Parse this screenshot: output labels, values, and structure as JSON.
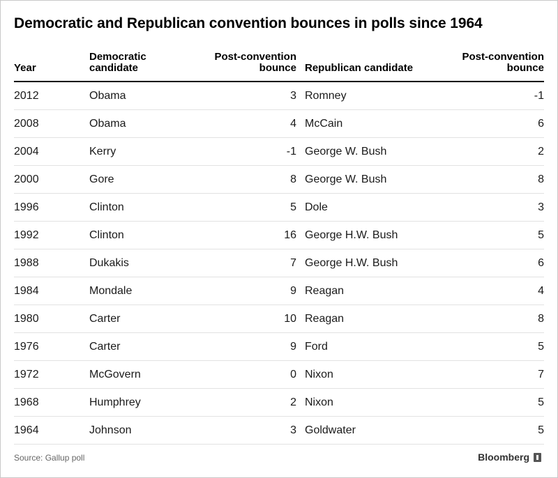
{
  "title": "Democratic and Republican convention bounces in polls since 1964",
  "source": "Source: Gallup poll",
  "brand": "Bloomberg",
  "chart_data": {
    "type": "table",
    "title": "Democratic and Republican convention bounces in polls since 1964",
    "columns": [
      "Year",
      "Democratic candidate",
      "Post-convention bounce",
      "Republican candidate",
      "Post-convention bounce"
    ],
    "rows": [
      [
        "2012",
        "Obama",
        "3",
        "Romney",
        "-1"
      ],
      [
        "2008",
        "Obama",
        "4",
        "McCain",
        "6"
      ],
      [
        "2004",
        "Kerry",
        "-1",
        "George W. Bush",
        "2"
      ],
      [
        "2000",
        "Gore",
        "8",
        "George W. Bush",
        "8"
      ],
      [
        "1996",
        "Clinton",
        "5",
        "Dole",
        "3"
      ],
      [
        "1992",
        "Clinton",
        "16",
        "George H.W. Bush",
        "5"
      ],
      [
        "1988",
        "Dukakis",
        "7",
        "George H.W. Bush",
        "6"
      ],
      [
        "1984",
        "Mondale",
        "9",
        "Reagan",
        "4"
      ],
      [
        "1980",
        "Carter",
        "10",
        "Reagan",
        "8"
      ],
      [
        "1976",
        "Carter",
        "9",
        "Ford",
        "5"
      ],
      [
        "1972",
        "McGovern",
        "0",
        "Nixon",
        "7"
      ],
      [
        "1968",
        "Humphrey",
        "2",
        "Nixon",
        "5"
      ],
      [
        "1964",
        "Johnson",
        "3",
        "Goldwater",
        "5"
      ]
    ]
  }
}
